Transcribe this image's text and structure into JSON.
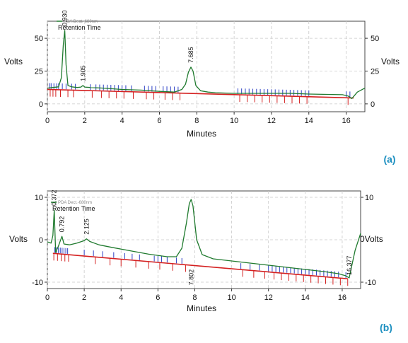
{
  "chart_data": [
    {
      "panel_label": "(a)",
      "type": "line",
      "xlabel": "Minutes",
      "ylabel_left": "Volts",
      "ylabel_right": "Volts",
      "xlim": [
        0,
        17
      ],
      "ylim": [
        -6,
        63
      ],
      "x_ticks": [
        0,
        2,
        4,
        6,
        8,
        10,
        12,
        14,
        16
      ],
      "y_ticks_left": [
        0,
        25,
        50
      ],
      "y_ticks_right": [
        0,
        25,
        50
      ],
      "legend": {
        "detector_label": "PDA Dect.-680nm",
        "entry": "Retention Time",
        "placement": "top-left"
      },
      "grid": true,
      "series": [
        {
          "name": "PDA Dect.-680nm",
          "color": "#1f7a2e",
          "x": [
            0.0,
            0.3,
            0.6,
            0.75,
            0.85,
            0.93,
            1.0,
            1.1,
            1.3,
            1.6,
            1.8,
            1.905,
            2.0,
            2.3,
            3.0,
            4.0,
            5.0,
            6.0,
            6.8,
            7.2,
            7.4,
            7.55,
            7.685,
            7.8,
            7.95,
            8.2,
            8.6,
            9.0,
            10.0,
            11.0,
            12.0,
            13.0,
            14.0,
            15.0,
            15.8,
            16.1,
            16.3,
            16.6,
            17.0
          ],
          "y": [
            12,
            12.5,
            13,
            20,
            45,
            56,
            30,
            14,
            13,
            12.5,
            12.8,
            14,
            12.8,
            12.5,
            12,
            11,
            10.5,
            9.5,
            9,
            11,
            15,
            24,
            28,
            25,
            14,
            10,
            9,
            8.5,
            8,
            8,
            8,
            8,
            7.5,
            7.2,
            7,
            6,
            4,
            9,
            12
          ]
        },
        {
          "name": "baseline",
          "color": "#d42020",
          "x": [
            0.0,
            16.4
          ],
          "y": [
            11,
            4.5
          ]
        }
      ],
      "peak_labels": [
        {
          "x": 0.93,
          "text": "0.930"
        },
        {
          "x": 1.905,
          "text": "1.905"
        },
        {
          "x": 7.685,
          "text": "7.685"
        }
      ],
      "blue_marks_x": [
        0.1,
        0.2,
        0.35,
        0.5,
        0.6,
        0.8,
        1.0,
        1.3,
        1.5,
        2.3,
        2.6,
        2.8,
        3.0,
        3.2,
        3.4,
        3.6,
        3.8,
        4.0,
        4.2,
        4.5,
        5.2,
        5.4,
        5.6,
        5.8,
        6.2,
        6.4,
        6.6,
        6.8,
        7.0,
        10.2,
        10.4,
        10.6,
        10.8,
        11.0,
        11.2,
        11.4,
        11.6,
        11.8,
        12.0,
        12.2,
        12.4,
        12.6,
        12.8,
        13.0,
        13.2,
        13.4,
        13.6,
        13.8,
        14.0,
        16.0,
        16.2
      ],
      "red_marks_x": [
        0.15,
        0.3,
        0.45,
        0.7,
        1.1,
        1.4,
        2.4,
        2.9,
        3.3,
        3.7,
        4.1,
        4.6,
        5.3,
        5.7,
        6.3,
        6.7,
        7.1,
        10.3,
        10.7,
        11.1,
        11.5,
        11.9,
        12.3,
        12.7,
        13.1,
        13.5,
        13.9,
        16.1
      ]
    },
    {
      "panel_label": "(b)",
      "type": "line",
      "xlabel": "Minutes",
      "ylabel_left": "Volts",
      "ylabel_right": "0Volts",
      "xlim": [
        0,
        17
      ],
      "ylim": [
        -11.5,
        11.5
      ],
      "x_ticks": [
        0,
        2,
        4,
        6,
        8,
        10,
        12,
        14,
        16
      ],
      "y_ticks_left": [
        -10,
        0,
        10
      ],
      "y_ticks_right": [
        -10,
        10
      ],
      "legend": {
        "detector_label": "PDA Dect.-680nm",
        "entry": "Retention Time",
        "placement": "top-left"
      },
      "grid": true,
      "series": [
        {
          "name": "PDA Dect.-680nm",
          "color": "#1f7a2e",
          "x": [
            0.0,
            0.2,
            0.3,
            0.372,
            0.45,
            0.6,
            0.792,
            0.9,
            1.2,
            1.6,
            2.0,
            2.125,
            2.3,
            2.8,
            3.5,
            4.5,
            5.5,
            6.5,
            7.0,
            7.3,
            7.55,
            7.7,
            7.802,
            7.9,
            8.1,
            8.4,
            9.0,
            10.0,
            11.0,
            12.0,
            13.0,
            14.0,
            15.0,
            15.8,
            16.2,
            16.377,
            16.5,
            16.7,
            17.0
          ],
          "y": [
            -0.5,
            -0.8,
            1.0,
            7.0,
            -3.0,
            -1.5,
            0.8,
            -1.0,
            -1.2,
            -0.8,
            -0.2,
            0.2,
            -0.4,
            -1.2,
            -1.8,
            -2.6,
            -3.4,
            -4.0,
            -4.0,
            -2.0,
            4.0,
            8.5,
            9.5,
            8.0,
            0.0,
            -3.5,
            -4.5,
            -5.0,
            -5.5,
            -6.0,
            -6.5,
            -7.0,
            -7.5,
            -8.0,
            -8.5,
            -9.0,
            -6.5,
            -2.5,
            1.5
          ]
        },
        {
          "name": "baseline",
          "color": "#d42020",
          "x": [
            0.3,
            16.3
          ],
          "y": [
            -3.2,
            -9.2
          ]
        }
      ],
      "peak_labels": [
        {
          "x": 0.372,
          "text": "0.372"
        },
        {
          "x": 0.792,
          "text": "0.792"
        },
        {
          "x": 2.125,
          "text": "2.125"
        },
        {
          "x": 7.802,
          "text": "7.802"
        },
        {
          "x": 16.377,
          "text": "16.377"
        }
      ],
      "blue_marks_x": [
        0.4,
        0.5,
        0.6,
        0.7,
        0.8,
        0.9,
        1.0,
        1.1,
        2.0,
        2.5,
        3.0,
        3.6,
        4.2,
        4.6,
        5.0,
        5.8,
        6.0,
        6.2,
        6.5,
        7.0,
        7.3,
        10.5,
        11.0,
        11.5,
        12.0,
        12.2,
        12.4,
        12.6,
        12.8,
        13.0,
        13.2,
        13.4,
        13.6,
        13.8,
        14.0,
        14.2,
        14.4,
        14.6,
        14.8,
        15.0,
        15.2,
        15.4,
        15.6,
        15.8,
        16.2
      ],
      "red_marks_x": [
        0.35,
        0.55,
        0.75,
        0.95,
        1.15,
        2.6,
        3.4,
        4.0,
        4.8,
        5.5,
        6.1,
        6.8,
        7.5,
        10.6,
        11.2,
        11.8,
        12.3,
        12.7,
        13.1,
        13.5,
        13.9,
        14.3,
        14.7,
        15.1,
        15.5,
        15.9,
        16.3
      ]
    }
  ]
}
